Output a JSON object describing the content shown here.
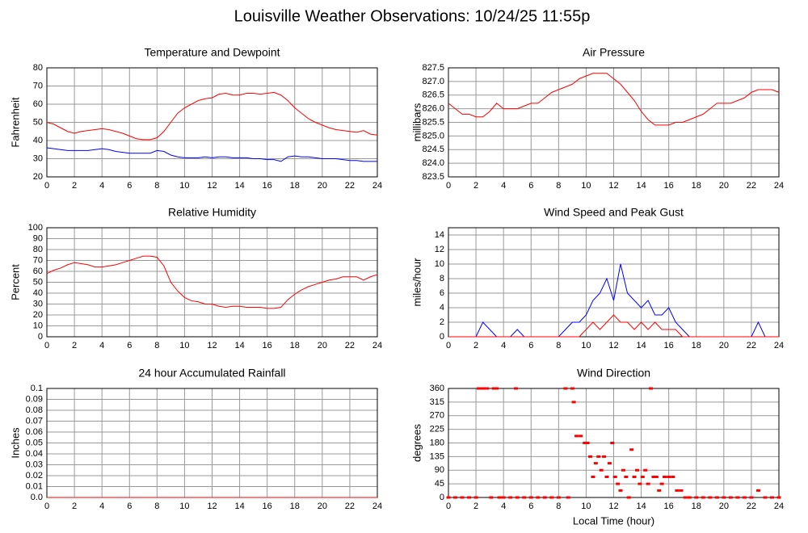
{
  "title": "Louisville Weather Observations: 10/24/25 11:55p",
  "chart_data": [
    {
      "type": "line",
      "title": "Temperature and Dewpoint",
      "ylabel": "Fahrenheit",
      "x": [
        0,
        0.5,
        1,
        1.5,
        2,
        2.5,
        3,
        3.5,
        4,
        4.5,
        5,
        5.5,
        6,
        6.5,
        7,
        7.5,
        8,
        8.5,
        9,
        9.5,
        10,
        10.5,
        11,
        11.5,
        12,
        12.5,
        13,
        13.5,
        14,
        14.5,
        15,
        15.5,
        16,
        16.5,
        17,
        17.5,
        18,
        18.5,
        19,
        19.5,
        20,
        20.5,
        21,
        21.5,
        22,
        22.5,
        23,
        23.5,
        24
      ],
      "series": [
        {
          "color": "#ff0000",
          "values": [
            50,
            49,
            47,
            45,
            44,
            45,
            45.5,
            46,
            46.5,
            46,
            45,
            44,
            42.5,
            41,
            40.5,
            40.5,
            41.5,
            45,
            50,
            55,
            58,
            60,
            62,
            63,
            63.5,
            65.5,
            66,
            65,
            65,
            66,
            66,
            65.5,
            66,
            66.5,
            65,
            62,
            58,
            55,
            52,
            50,
            48.5,
            47,
            46,
            45.5,
            45,
            44.5,
            45.5,
            43.5,
            43
          ]
        },
        {
          "color": "#0000ff",
          "values": [
            36,
            35.5,
            35,
            34.5,
            34.5,
            34.5,
            34.5,
            35,
            35.5,
            35,
            34,
            33.5,
            33,
            33,
            33,
            33,
            34.5,
            34,
            32,
            31,
            30.5,
            30.5,
            30.5,
            31,
            30.5,
            31,
            31,
            30.5,
            30.5,
            30.5,
            30,
            30,
            29.5,
            29.5,
            28.5,
            31,
            31.5,
            31,
            31,
            30.5,
            30,
            30,
            30,
            29.5,
            29,
            29,
            28.5,
            28.5,
            28.5
          ]
        }
      ],
      "xlim": [
        0,
        24
      ],
      "xticks": [
        0,
        2,
        4,
        6,
        8,
        10,
        12,
        14,
        16,
        18,
        20,
        22,
        24
      ],
      "ylim": [
        20,
        80
      ],
      "yticks": [
        20,
        30,
        40,
        50,
        60,
        70,
        80
      ],
      "grid": true
    },
    {
      "type": "line",
      "title": "Air Pressure",
      "ylabel": "millibars",
      "x": [
        0,
        0.5,
        1,
        1.5,
        2,
        2.5,
        3,
        3.5,
        4,
        4.5,
        5,
        5.5,
        6,
        6.5,
        7,
        7.5,
        8,
        8.5,
        9,
        9.5,
        10,
        10.5,
        11,
        11.5,
        12,
        12.5,
        13,
        13.5,
        14,
        14.5,
        15,
        15.5,
        16,
        16.5,
        17,
        17.5,
        18,
        18.5,
        19,
        19.5,
        20,
        20.5,
        21,
        21.5,
        22,
        22.5,
        23,
        23.5,
        24
      ],
      "series": [
        {
          "color": "#ff0000",
          "values": [
            826.2,
            826.0,
            825.8,
            825.8,
            825.7,
            825.7,
            825.9,
            826.2,
            826.0,
            826.0,
            826.0,
            826.1,
            826.2,
            826.2,
            826.4,
            826.6,
            826.7,
            826.8,
            826.9,
            827.1,
            827.2,
            827.3,
            827.3,
            827.3,
            827.1,
            826.9,
            826.6,
            826.3,
            825.9,
            825.6,
            825.4,
            825.4,
            825.4,
            825.5,
            825.5,
            825.6,
            825.7,
            825.8,
            826.0,
            826.2,
            826.2,
            826.2,
            826.3,
            826.4,
            826.6,
            826.7,
            826.7,
            826.7,
            826.6
          ]
        }
      ],
      "xlim": [
        0,
        24
      ],
      "xticks": [
        0,
        2,
        4,
        6,
        8,
        10,
        12,
        14,
        16,
        18,
        20,
        22,
        24
      ],
      "ylim": [
        823.5,
        827.5
      ],
      "yticks": [
        823.5,
        {
          "value": 824,
          "label": "824.0"
        },
        824.5,
        {
          "value": 825,
          "label": "825.0"
        },
        825.5,
        {
          "value": 826,
          "label": "826.0"
        },
        826.5,
        {
          "value": 827,
          "label": "827.0"
        },
        827.5
      ],
      "grid": true
    },
    {
      "type": "line",
      "title": "Relative Humidity",
      "ylabel": "Percent",
      "x": [
        0,
        0.5,
        1,
        1.5,
        2,
        2.5,
        3,
        3.5,
        4,
        4.5,
        5,
        5.5,
        6,
        6.5,
        7,
        7.5,
        8,
        8.5,
        9,
        9.5,
        10,
        10.5,
        11,
        11.5,
        12,
        12.5,
        13,
        13.5,
        14,
        14.5,
        15,
        15.5,
        16,
        16.5,
        17,
        17.5,
        18,
        18.5,
        19,
        19.5,
        20,
        20.5,
        21,
        21.5,
        22,
        22.5,
        23,
        23.5,
        24
      ],
      "series": [
        {
          "color": "#ff0000",
          "values": [
            58,
            61,
            63,
            66,
            68,
            67,
            66,
            64,
            64,
            65,
            66,
            68,
            70,
            72,
            74,
            74,
            73,
            65,
            50,
            42,
            36,
            33,
            32,
            30,
            30,
            28,
            27,
            28,
            28,
            27,
            27,
            27,
            26,
            26,
            27,
            34,
            39,
            43,
            46,
            48,
            50,
            52,
            53,
            55,
            55,
            55,
            52,
            55,
            57
          ]
        }
      ],
      "xlim": [
        0,
        24
      ],
      "xticks": [
        0,
        2,
        4,
        6,
        8,
        10,
        12,
        14,
        16,
        18,
        20,
        22,
        24
      ],
      "ylim": [
        0,
        100
      ],
      "yticks": [
        0,
        10,
        20,
        30,
        40,
        50,
        60,
        70,
        80,
        90,
        100
      ],
      "grid": true
    },
    {
      "type": "line",
      "title": "Wind Speed and Peak Gust",
      "ylabel": "miles/hour",
      "x": [
        0,
        0.5,
        1,
        1.5,
        2,
        2.5,
        3,
        3.5,
        4,
        4.5,
        5,
        5.5,
        6,
        6.5,
        7,
        7.5,
        8,
        8.5,
        9,
        9.5,
        10,
        10.5,
        11,
        11.5,
        12,
        12.5,
        13,
        13.5,
        14,
        14.5,
        15,
        15.5,
        16,
        16.5,
        17,
        17.5,
        18,
        18.5,
        19,
        19.5,
        20,
        20.5,
        21,
        21.5,
        22,
        22.5,
        23,
        23.5,
        24
      ],
      "series": [
        {
          "color": "#0000ff",
          "values": [
            0,
            0,
            0,
            0,
            0,
            2,
            1,
            0,
            0,
            0,
            1,
            0,
            0,
            0,
            0,
            0,
            0,
            1,
            2,
            2,
            3,
            5,
            6,
            8,
            5,
            10,
            6,
            5,
            4,
            5,
            3,
            3,
            4,
            2,
            1,
            0,
            0,
            0,
            0,
            0,
            0,
            0,
            0,
            0,
            0,
            2,
            0,
            0,
            0
          ]
        },
        {
          "color": "#ff0000",
          "values": [
            0,
            0,
            0,
            0,
            0,
            0,
            0,
            0,
            0,
            0,
            0,
            0,
            0,
            0,
            0,
            0,
            0,
            0,
            0,
            0,
            1,
            2,
            1,
            2,
            3,
            2,
            2,
            1,
            2,
            1,
            2,
            1,
            1,
            1,
            0,
            0,
            0,
            0,
            0,
            0,
            0,
            0,
            0,
            0,
            0,
            0,
            0,
            0,
            0
          ]
        }
      ],
      "xlim": [
        0,
        24
      ],
      "xticks": [
        0,
        2,
        4,
        6,
        8,
        10,
        12,
        14,
        16,
        18,
        20,
        22,
        24
      ],
      "ylim": [
        0,
        15
      ],
      "yticks": [
        0,
        2,
        4,
        6,
        8,
        10,
        12,
        14
      ],
      "grid": true
    },
    {
      "type": "line",
      "title": "24 hour Accumulated Rainfall",
      "ylabel": "Inches",
      "x": [
        0,
        24
      ],
      "series": [
        {
          "color": "#ff0000",
          "values": [
            0,
            0
          ]
        }
      ],
      "xlim": [
        0,
        24
      ],
      "xticks": [
        0,
        2,
        4,
        6,
        8,
        10,
        12,
        14,
        16,
        18,
        20,
        22,
        24
      ],
      "ylim": [
        0,
        0.1
      ],
      "yticks": [
        {
          "value": 0,
          "label": "0.0"
        },
        0.01,
        0.02,
        0.03,
        0.04,
        0.05,
        0.06,
        0.07,
        0.08,
        0.09,
        0.1
      ],
      "grid": true
    },
    {
      "type": "scatter",
      "title": "Wind Direction",
      "ylabel": "degrees",
      "xlabel": "Local Time (hour)",
      "x": [
        0,
        0.5,
        1,
        1.5,
        2,
        2.2,
        2.4,
        2.6,
        2.8,
        3.1,
        3.3,
        3.5,
        3.7,
        4,
        4.5,
        4.9,
        5,
        5.5,
        6,
        6.5,
        7,
        7.5,
        8,
        8.5,
        8.7,
        9,
        9.1,
        9.3,
        9.6,
        9.9,
        10.1,
        10.3,
        10.5,
        10.7,
        10.9,
        11.1,
        11.3,
        11.5,
        11.7,
        11.9,
        12.1,
        12.3,
        12.5,
        12.7,
        12.9,
        13.1,
        13.3,
        13.5,
        13.7,
        13.9,
        14.1,
        14.3,
        14.5,
        14.7,
        14.9,
        15.1,
        15.3,
        15.5,
        15.7,
        16,
        16.3,
        16.6,
        16.9,
        17.2,
        17.5,
        18,
        18.5,
        19,
        19.5,
        20,
        20.5,
        21,
        21.5,
        22,
        22.5,
        23,
        23.5,
        24
      ],
      "series": [
        {
          "color": "#ff0000",
          "values": [
            0,
            0,
            0,
            0,
            0,
            360,
            360,
            360,
            360,
            0,
            360,
            360,
            0,
            0,
            0,
            360,
            0,
            0,
            0,
            0,
            0,
            0,
            0,
            360,
            0,
            360,
            315,
            203,
            203,
            180,
            180,
            135,
            68,
            113,
            135,
            90,
            135,
            68,
            113,
            180,
            68,
            45,
            23,
            90,
            68,
            0,
            158,
            68,
            90,
            45,
            68,
            90,
            45,
            360,
            68,
            68,
            23,
            45,
            68,
            68,
            68,
            23,
            23,
            0,
            0,
            0,
            0,
            0,
            0,
            0,
            0,
            0,
            0,
            0,
            23,
            0,
            0,
            0
          ]
        }
      ],
      "xlim": [
        0,
        24
      ],
      "xticks": [
        0,
        2,
        4,
        6,
        8,
        10,
        12,
        14,
        16,
        18,
        20,
        22,
        24
      ],
      "ylim": [
        0,
        360
      ],
      "yticks": [
        0,
        45,
        90,
        135,
        180,
        225,
        270,
        315,
        360
      ],
      "grid": true
    }
  ]
}
